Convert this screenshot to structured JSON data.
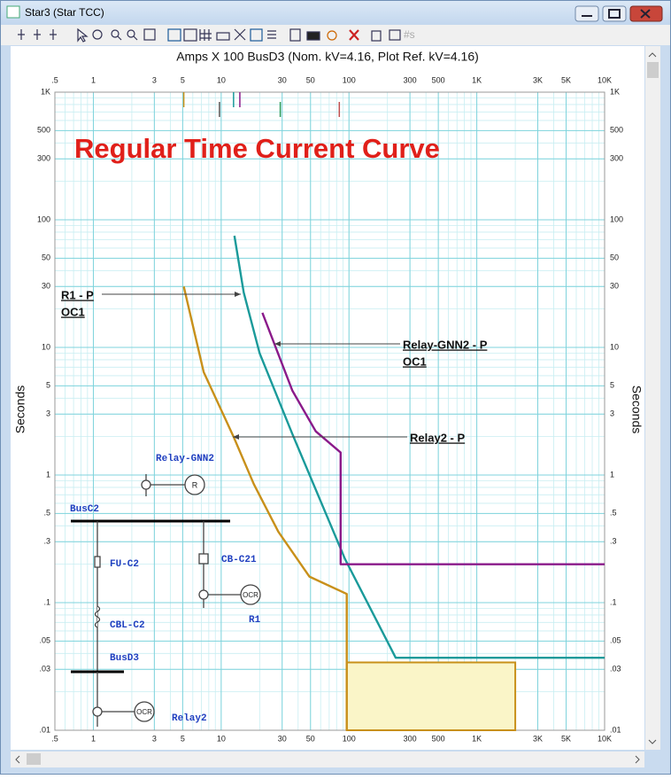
{
  "window": {
    "title": "Star3 (Star TCC)",
    "toolbar_text": "#s"
  },
  "chart_data": {
    "type": "line",
    "title": "Regular Time Current Curve",
    "header": "Amps  X  100   BusD3 (Nom. kV=4.16, Plot Ref. kV=4.16)",
    "ylabel": "Seconds",
    "log_x": true,
    "log_y": true,
    "grid": true,
    "xlim": [
      0.5,
      10000
    ],
    "ylim": [
      0.01,
      1000
    ],
    "xticks": [
      {
        "value": 0.5,
        "label": ".5"
      },
      1,
      3,
      5,
      10,
      30,
      50,
      100,
      300,
      500,
      {
        "value": 1000,
        "label": "1K"
      },
      {
        "value": 3000,
        "label": "3K"
      },
      {
        "value": 5000,
        "label": "5K"
      },
      {
        "value": 10000,
        "label": "10K"
      }
    ],
    "yticks": [
      {
        "value": 0.01,
        "label": ".01"
      },
      {
        "value": 0.03,
        "label": ".03"
      },
      {
        "value": 0.05,
        "label": ".05"
      },
      {
        "value": 0.1,
        "label": ".1"
      },
      {
        "value": 0.3,
        "label": ".3"
      },
      {
        "value": 0.5,
        "label": ".5"
      },
      1,
      3,
      5,
      10,
      30,
      50,
      100,
      300,
      500,
      {
        "value": 1000,
        "label": "1K"
      }
    ],
    "series": [
      {
        "name": "R1 - P",
        "sublabel": "OC1",
        "color": "#1a9a9a",
        "x": [
          12.7,
          15,
          20,
          36,
          93,
          232,
          10000
        ],
        "values": [
          75,
          27,
          9,
          2.1,
          0.22,
          0.037,
          0.037
        ]
      },
      {
        "name": "Relay-GNN2 - P",
        "sublabel": "OC1",
        "color": "#8a1a8a",
        "x": [
          21,
          36,
          55,
          86,
          86,
          10000
        ],
        "values": [
          18.7,
          4.6,
          2.2,
          1.5,
          0.2,
          0.2
        ]
      },
      {
        "name": "Relay2 - P",
        "color": "#c8901a",
        "x": [
          5.1,
          7.3,
          12.5,
          18,
          28,
          49,
          96,
          96
        ],
        "values": [
          30,
          6.4,
          2,
          0.85,
          0.36,
          0.16,
          0.117,
          0.01
        ]
      }
    ],
    "region": {
      "x": [
        96,
        2000
      ],
      "y": [
        0.01,
        0.034
      ],
      "color": "#faf5c8",
      "edge": "#c8901a"
    },
    "markers": [
      {
        "x": 5.1,
        "color": "#c8901a"
      },
      {
        "x": 9.7,
        "color": "#555555"
      },
      {
        "x": 12.5,
        "color": "#1a9a9a"
      },
      {
        "x": 14,
        "color": "#8a1a8a"
      },
      {
        "x": 29,
        "color": "#2a9a5a"
      },
      {
        "x": 84,
        "color": "#c05050"
      }
    ]
  },
  "diagram": {
    "relay_gnn2": "Relay-GNN2",
    "relay_symbol": "R",
    "bus_c2": "BusC2",
    "fuse": "FU-C2",
    "breaker": "CB-C21",
    "ocr_r1": "OCR",
    "r1": "R1",
    "cable": "CBL-C2",
    "bus_d3": "BusD3",
    "ocr_relay2": "OCR",
    "relay2": "Relay2"
  }
}
